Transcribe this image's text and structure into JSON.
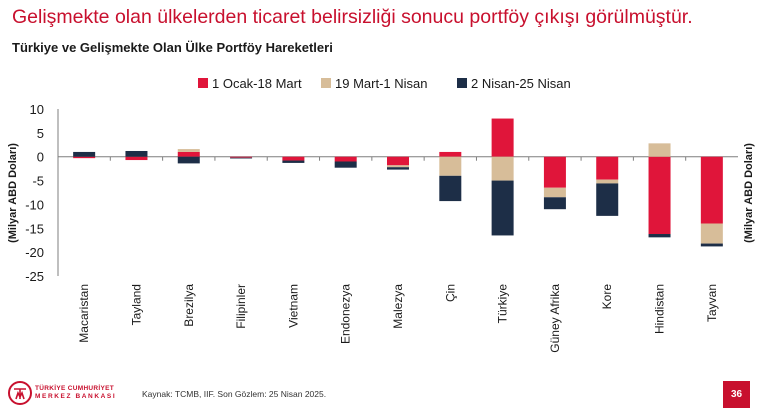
{
  "header": {
    "headline": "Gelişmekte olan ülkelerden ticaret belirsizliği sonucu portföy çıkışı görülmüştür."
  },
  "footer": {
    "logo_line1": "TÜRKİYE CUMHURİYET",
    "logo_line2": "MERKEZ BANKASI",
    "source": "Kaynak: TCMB, IIF. Son Gözlem: 25 Nisan 2025.",
    "page_number": "36"
  },
  "colors": {
    "period1": "#e0153a",
    "period2": "#d7bd99",
    "period3": "#1d2e47",
    "brand": "#c8102e"
  },
  "chart_data": {
    "type": "bar",
    "stacked": true,
    "title": "Türkiye ve Gelişmekte Olan Ülke Portföy Hareketleri",
    "ylabel": "(Milyar ABD Doları)",
    "ylabel_right": "(Milyar ABD Doları)",
    "ylim": [
      -25,
      10
    ],
    "yticks": [
      10,
      5,
      0,
      -5,
      -10,
      -15,
      -20,
      -25
    ],
    "legend_position": "top",
    "categories": [
      "Macaristan",
      "Tayland",
      "Brezilya",
      "Filipinler",
      "Vietnam",
      "Endonezya",
      "Malezya",
      "Çin",
      "Türkiye",
      "Güney Afrika",
      "Kore",
      "Hindistan",
      "Tayvan"
    ],
    "series": [
      {
        "name": "1 Ocak-18 Mart",
        "values": [
          -0.3,
          -0.7,
          1.0,
          -0.2,
          -0.8,
          -1.0,
          -1.8,
          1.0,
          8.0,
          -6.5,
          -4.8,
          -16.2,
          -14.0
        ]
      },
      {
        "name": "19 Mart-1 Nisan",
        "values": [
          0.0,
          0.0,
          0.6,
          0.0,
          0.0,
          0.0,
          -0.4,
          -4.0,
          -5.0,
          -2.0,
          -0.8,
          2.8,
          -4.2
        ]
      },
      {
        "name": "2 Nisan-25 Nisan",
        "values": [
          1.0,
          1.2,
          -1.4,
          -0.1,
          -0.5,
          -1.3,
          -0.5,
          -5.3,
          -11.5,
          -2.5,
          -6.8,
          -0.7,
          -0.6
        ]
      }
    ]
  }
}
